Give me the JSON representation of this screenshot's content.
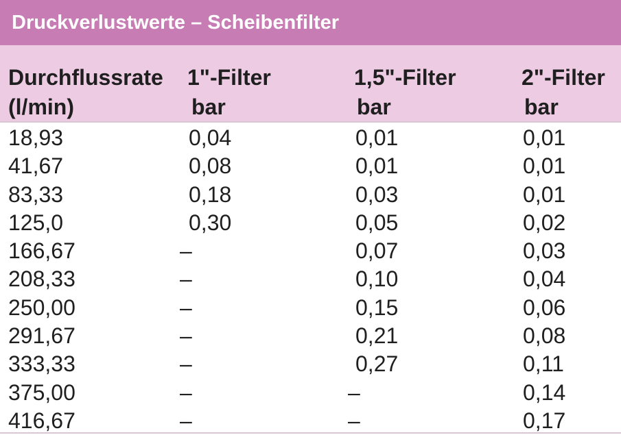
{
  "title": "Druckverlustwerte – Scheibenfilter",
  "headers": [
    {
      "line1": "Durchflussrate",
      "line2": "(l/min)"
    },
    {
      "line1": "1\"-Filter",
      "line2": "bar"
    },
    {
      "line1": "1,5\"-Filter",
      "line2": "bar"
    },
    {
      "line1": "2\"-Filter",
      "line2": "bar"
    }
  ],
  "rows": [
    [
      "18,93",
      "0,04",
      "0,01",
      "0,01"
    ],
    [
      "41,67",
      "0,08",
      "0,01",
      "0,01"
    ],
    [
      "83,33",
      "0,18",
      "0,03",
      "0,01"
    ],
    [
      "125,0",
      "0,30",
      "0,05",
      "0,02"
    ],
    [
      "166,67",
      "–",
      "0,07",
      "0,03"
    ],
    [
      "208,33",
      "–",
      "0,10",
      "0,04"
    ],
    [
      "250,00",
      "–",
      "0,15",
      "0,06"
    ],
    [
      "291,67",
      "–",
      "0,21",
      "0,08"
    ],
    [
      "333,33",
      "–",
      "0,27",
      "0,11"
    ],
    [
      "375,00",
      "–",
      "–",
      "0,14"
    ],
    [
      "416,67",
      "–",
      "–",
      "0,17"
    ]
  ],
  "colors": {
    "title_bg": "#c77db3",
    "header_bg": "#edcbe3",
    "rule": "#d9c8d3"
  }
}
